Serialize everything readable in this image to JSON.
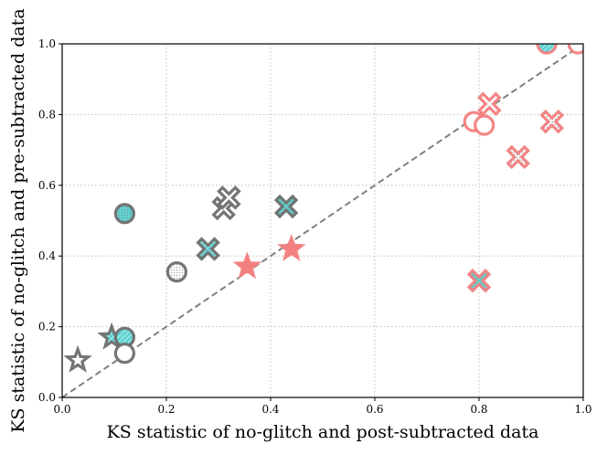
{
  "chart_data": {
    "type": "scatter",
    "title": "",
    "xlabel": "KS statistic of no-glitch and post-subtracted data",
    "ylabel": "KS statistic of no-glitch and pre-subtracted data",
    "xlim": [
      0.0,
      1.0
    ],
    "ylim": [
      0.0,
      1.0
    ],
    "grid": true,
    "xticks": [
      "0.0",
      "0.2",
      "0.4",
      "0.6",
      "0.8",
      "1.0"
    ],
    "yticks": [
      "0.0",
      "0.2",
      "0.4",
      "0.6",
      "0.8",
      "1.0"
    ],
    "reference_line": {
      "type": "y=x",
      "style": "dashed",
      "color": "#7f7f7f"
    },
    "colors": {
      "gray": "#6e6e6e",
      "red": "#f28080",
      "cyan": "#5fd3d3",
      "white": "#ffffff"
    },
    "points": [
      {
        "x": 0.03,
        "y": 0.105,
        "marker": "star",
        "edge": "gray",
        "fill": "white",
        "hatch": "none"
      },
      {
        "x": 0.095,
        "y": 0.17,
        "marker": "star",
        "edge": "gray",
        "fill": "cyan",
        "hatch": "stripes"
      },
      {
        "x": 0.12,
        "y": 0.17,
        "marker": "circle",
        "edge": "gray",
        "fill": "cyan",
        "hatch": "stripes"
      },
      {
        "x": 0.12,
        "y": 0.125,
        "marker": "circle",
        "edge": "gray",
        "fill": "white",
        "hatch": "stripes"
      },
      {
        "x": 0.12,
        "y": 0.52,
        "marker": "circle",
        "edge": "gray",
        "fill": "cyan",
        "hatch": "dots"
      },
      {
        "x": 0.22,
        "y": 0.355,
        "marker": "circle",
        "edge": "gray",
        "fill": "white",
        "hatch": "dots"
      },
      {
        "x": 0.28,
        "y": 0.42,
        "marker": "x",
        "edge": "gray",
        "fill": "cyan",
        "hatch": "stripes"
      },
      {
        "x": 0.31,
        "y": 0.535,
        "marker": "x",
        "edge": "gray",
        "fill": "white",
        "hatch": "stripes"
      },
      {
        "x": 0.32,
        "y": 0.565,
        "marker": "x",
        "edge": "gray",
        "fill": "white",
        "hatch": "stripes"
      },
      {
        "x": 0.43,
        "y": 0.54,
        "marker": "x",
        "edge": "gray",
        "fill": "cyan",
        "hatch": "dots"
      },
      {
        "x": 0.355,
        "y": 0.37,
        "marker": "star",
        "edge": "red",
        "fill": "red",
        "hatch": "none"
      },
      {
        "x": 0.44,
        "y": 0.42,
        "marker": "star",
        "edge": "red",
        "fill": "red",
        "hatch": "none"
      },
      {
        "x": 0.79,
        "y": 0.78,
        "marker": "circle",
        "edge": "red",
        "fill": "white",
        "hatch": "stripes"
      },
      {
        "x": 0.81,
        "y": 0.77,
        "marker": "circle",
        "edge": "red",
        "fill": "white",
        "hatch": "stripes"
      },
      {
        "x": 0.82,
        "y": 0.83,
        "marker": "x",
        "edge": "red",
        "fill": "white",
        "hatch": "stripes"
      },
      {
        "x": 0.875,
        "y": 0.68,
        "marker": "x",
        "edge": "red",
        "fill": "white",
        "hatch": "dots"
      },
      {
        "x": 0.94,
        "y": 0.78,
        "marker": "x",
        "edge": "red",
        "fill": "white",
        "hatch": "dots"
      },
      {
        "x": 0.8,
        "y": 0.33,
        "marker": "x",
        "edge": "red",
        "fill": "cyan",
        "hatch": "dots"
      },
      {
        "x": 0.93,
        "y": 1.0,
        "marker": "circle",
        "edge": "red",
        "fill": "cyan",
        "hatch": "stripes"
      },
      {
        "x": 0.99,
        "y": 1.0,
        "marker": "circle",
        "edge": "red",
        "fill": "white",
        "hatch": "stripes"
      }
    ]
  }
}
